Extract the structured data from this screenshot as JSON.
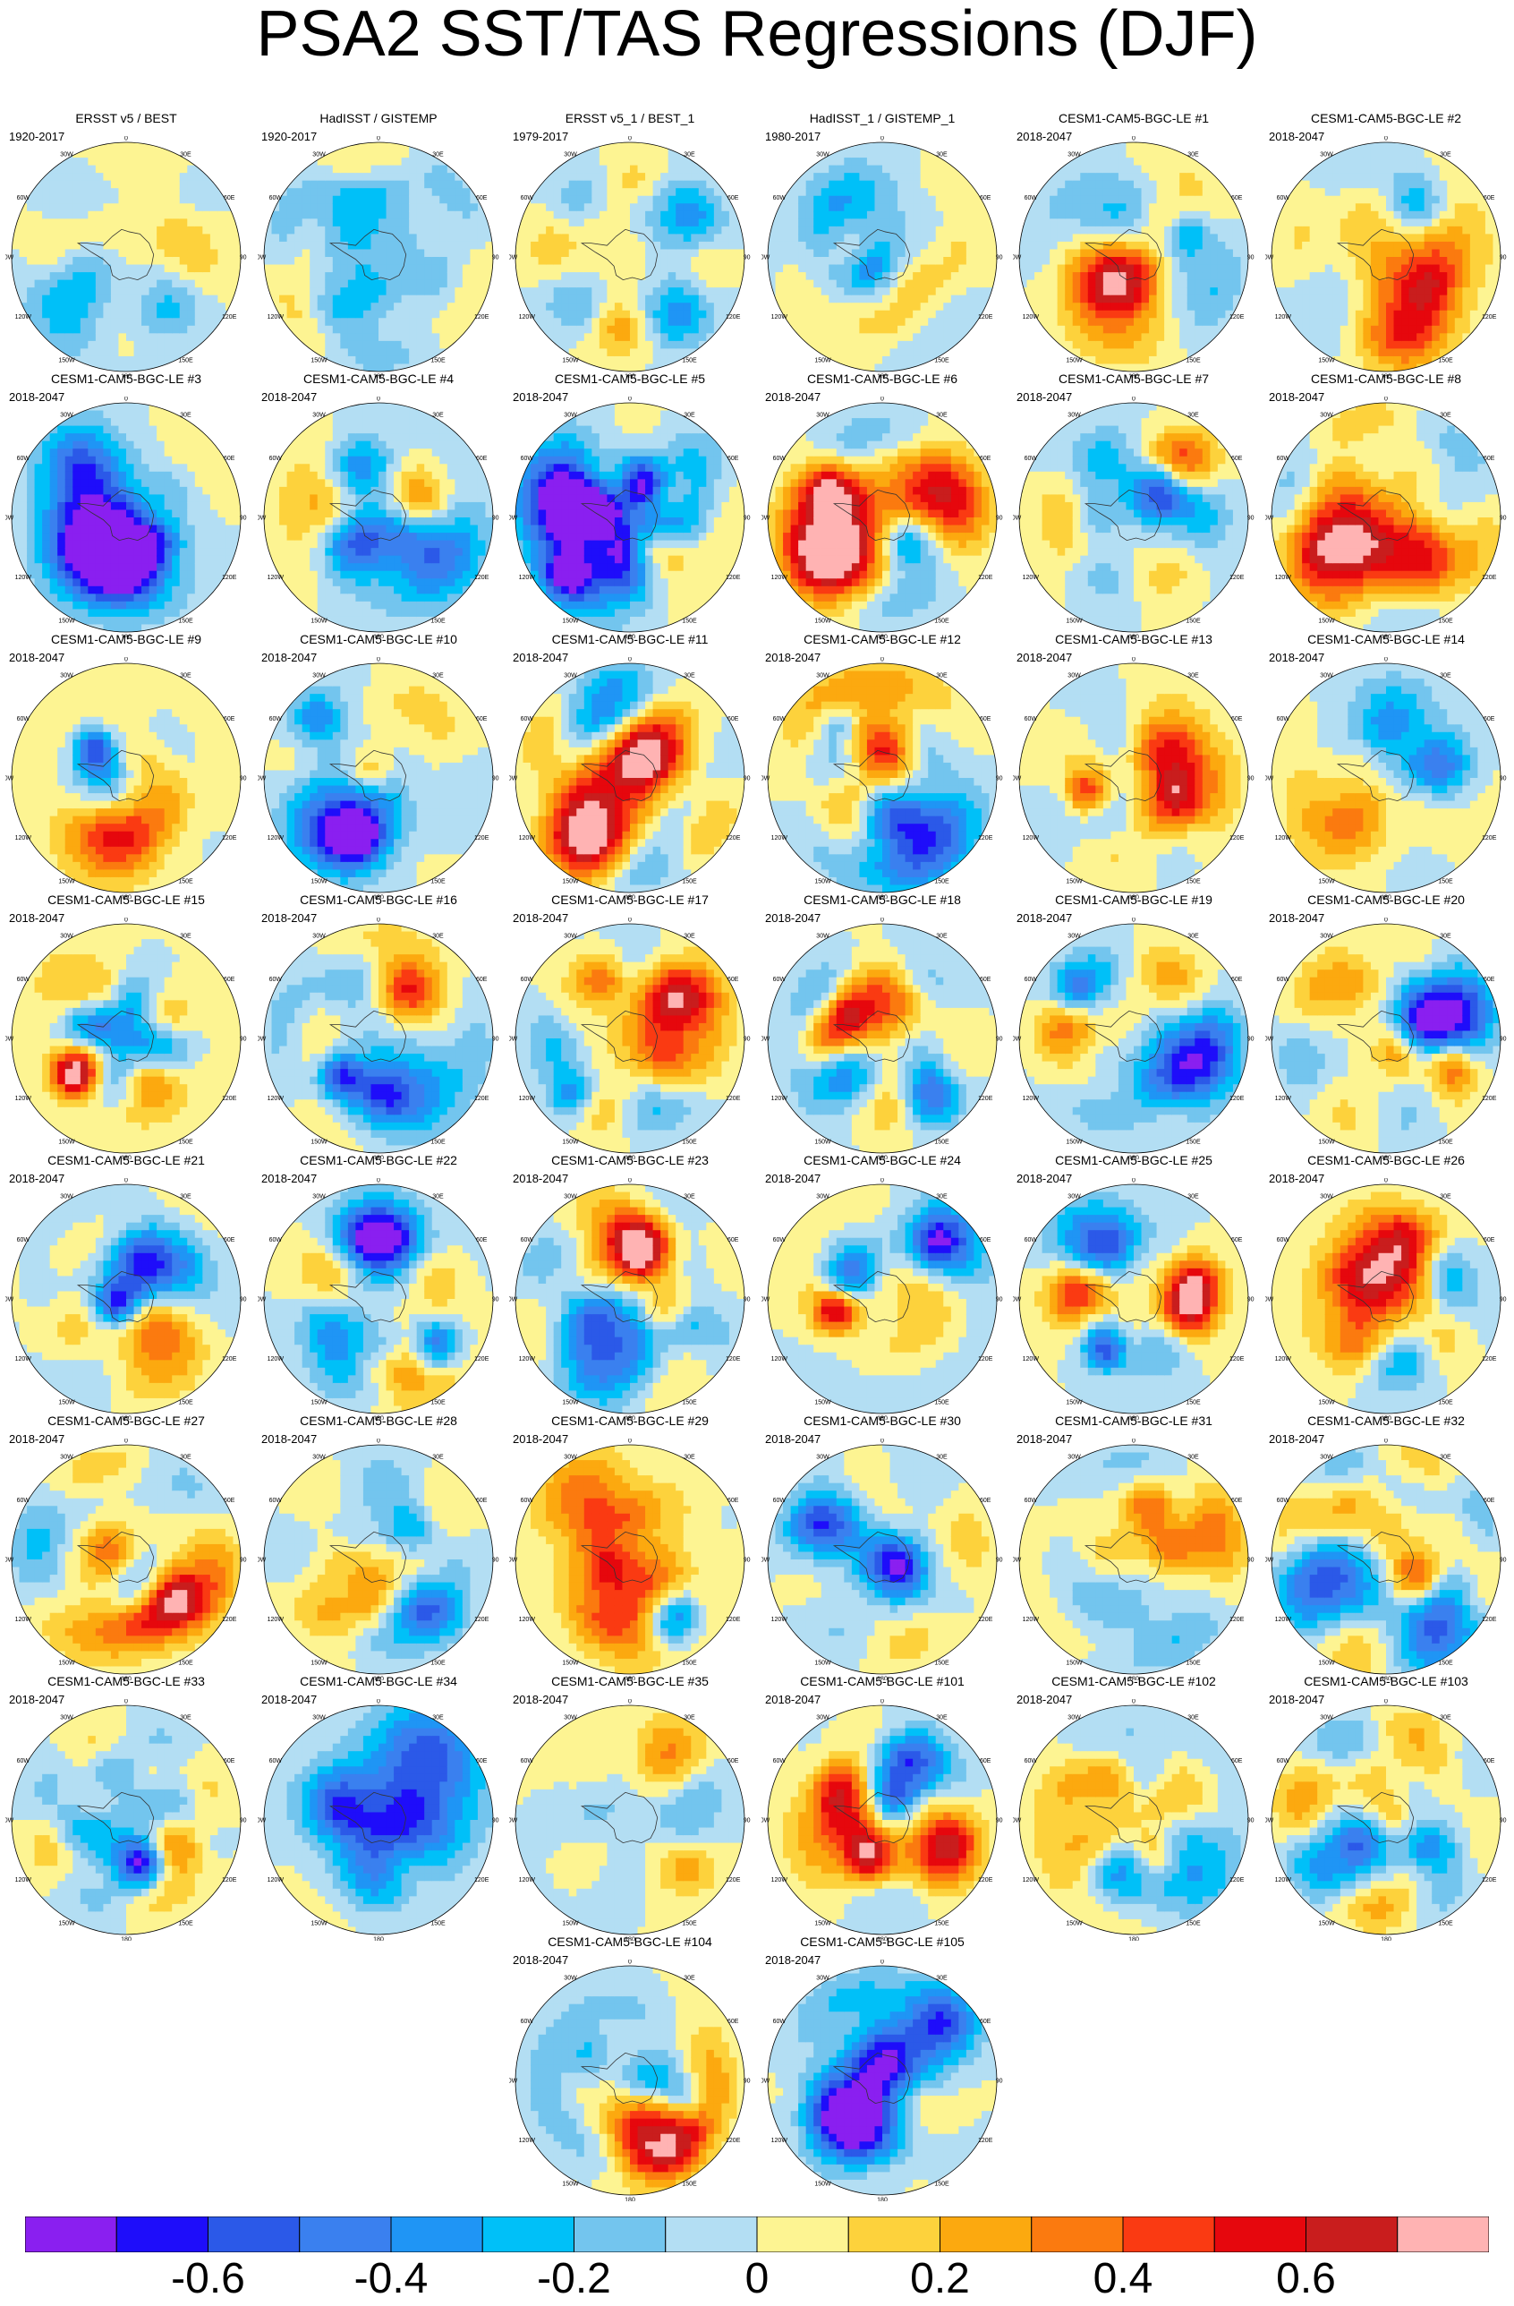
{
  "title": "PSA2 SST/TAS Regressions (DJF)",
  "panels": [
    {
      "title": "ERSST v5 / BEST",
      "period": "1920-2017"
    },
    {
      "title": "HadISST / GISTEMP",
      "period": "1920-2017"
    },
    {
      "title": "ERSST v5_1 / BEST_1",
      "period": "1979-2017"
    },
    {
      "title": "HadISST_1 / GISTEMP_1",
      "period": "1980-2017"
    },
    {
      "title": "CESM1-CAM5-BGC-LE #1",
      "period": "2018-2047"
    },
    {
      "title": "CESM1-CAM5-BGC-LE #2",
      "period": "2018-2047"
    },
    {
      "title": "CESM1-CAM5-BGC-LE #3",
      "period": "2018-2047"
    },
    {
      "title": "CESM1-CAM5-BGC-LE #4",
      "period": "2018-2047"
    },
    {
      "title": "CESM1-CAM5-BGC-LE #5",
      "period": "2018-2047"
    },
    {
      "title": "CESM1-CAM5-BGC-LE #6",
      "period": "2018-2047"
    },
    {
      "title": "CESM1-CAM5-BGC-LE #7",
      "period": "2018-2047"
    },
    {
      "title": "CESM1-CAM5-BGC-LE #8",
      "period": "2018-2047"
    },
    {
      "title": "CESM1-CAM5-BGC-LE #9",
      "period": "2018-2047"
    },
    {
      "title": "CESM1-CAM5-BGC-LE #10",
      "period": "2018-2047"
    },
    {
      "title": "CESM1-CAM5-BGC-LE #11",
      "period": "2018-2047"
    },
    {
      "title": "CESM1-CAM5-BGC-LE #12",
      "period": "2018-2047"
    },
    {
      "title": "CESM1-CAM5-BGC-LE #13",
      "period": "2018-2047"
    },
    {
      "title": "CESM1-CAM5-BGC-LE #14",
      "period": "2018-2047"
    },
    {
      "title": "CESM1-CAM5-BGC-LE #15",
      "period": "2018-2047"
    },
    {
      "title": "CESM1-CAM5-BGC-LE #16",
      "period": "2018-2047"
    },
    {
      "title": "CESM1-CAM5-BGC-LE #17",
      "period": "2018-2047"
    },
    {
      "title": "CESM1-CAM5-BGC-LE #18",
      "period": "2018-2047"
    },
    {
      "title": "CESM1-CAM5-BGC-LE #19",
      "period": "2018-2047"
    },
    {
      "title": "CESM1-CAM5-BGC-LE #20",
      "period": "2018-2047"
    },
    {
      "title": "CESM1-CAM5-BGC-LE #21",
      "period": "2018-2047"
    },
    {
      "title": "CESM1-CAM5-BGC-LE #22",
      "period": "2018-2047"
    },
    {
      "title": "CESM1-CAM5-BGC-LE #23",
      "period": "2018-2047"
    },
    {
      "title": "CESM1-CAM5-BGC-LE #24",
      "period": "2018-2047"
    },
    {
      "title": "CESM1-CAM5-BGC-LE #25",
      "period": "2018-2047"
    },
    {
      "title": "CESM1-CAM5-BGC-LE #26",
      "period": "2018-2047"
    },
    {
      "title": "CESM1-CAM5-BGC-LE #27",
      "period": "2018-2047"
    },
    {
      "title": "CESM1-CAM5-BGC-LE #28",
      "period": "2018-2047"
    },
    {
      "title": "CESM1-CAM5-BGC-LE #29",
      "period": "2018-2047"
    },
    {
      "title": "CESM1-CAM5-BGC-LE #30",
      "period": "2018-2047"
    },
    {
      "title": "CESM1-CAM5-BGC-LE #31",
      "period": "2018-2047"
    },
    {
      "title": "CESM1-CAM5-BGC-LE #32",
      "period": "2018-2047"
    },
    {
      "title": "CESM1-CAM5-BGC-LE #33",
      "period": "2018-2047"
    },
    {
      "title": "CESM1-CAM5-BGC-LE #34",
      "period": "2018-2047"
    },
    {
      "title": "CESM1-CAM5-BGC-LE #35",
      "period": "2018-2047"
    },
    {
      "title": "CESM1-CAM5-BGC-LE #101",
      "period": "2018-2047"
    },
    {
      "title": "CESM1-CAM5-BGC-LE #102",
      "period": "2018-2047"
    },
    {
      "title": "CESM1-CAM5-BGC-LE #103",
      "period": "2018-2047"
    },
    {
      "title": "CESM1-CAM5-BGC-LE #104",
      "period": "2018-2047"
    },
    {
      "title": "CESM1-CAM5-BGC-LE #105",
      "period": "2018-2047"
    }
  ],
  "longitude_labels": [
    "0",
    "30E",
    "60E",
    "90E",
    "120E",
    "150E",
    "180",
    "150W",
    "120W",
    "90W",
    "60W",
    "30W"
  ],
  "chart_data": {
    "type": "heatmap",
    "projection": "south polar stereographic",
    "colorbar": {
      "levels": [
        -0.7,
        -0.6,
        -0.5,
        -0.4,
        -0.3,
        -0.2,
        -0.1,
        0,
        0.1,
        0.2,
        0.3,
        0.4,
        0.5,
        0.6,
        0.7
      ],
      "colors": [
        "#8a1ff0",
        "#1e0dfa",
        "#2b59e8",
        "#3a80ef",
        "#1f95f5",
        "#00c0f8",
        "#73c5ee",
        "#b3def3",
        "#fdf492",
        "#fdd23c",
        "#fca90f",
        "#fb7a0f",
        "#fa3a12",
        "#e6070d",
        "#c91d1d",
        "#ffb3b3"
      ],
      "tick_labels": [
        "-0.6",
        "-0.4",
        "-0.2",
        "0",
        "0.2",
        "0.4",
        "0.6"
      ],
      "tick_values": [
        -0.6,
        -0.4,
        -0.2,
        0,
        0.2,
        0.4,
        0.6
      ]
    }
  }
}
